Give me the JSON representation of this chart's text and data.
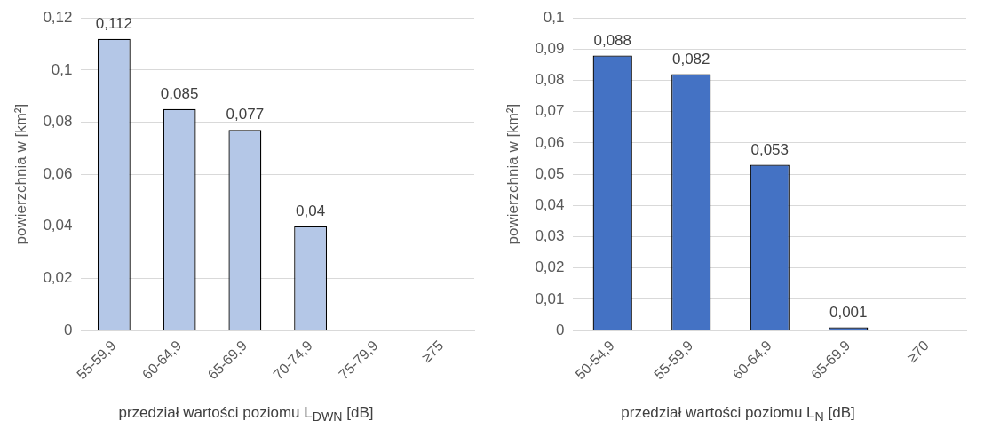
{
  "chart_data": [
    {
      "type": "bar",
      "xlabel": "przedział wartości poziomu L$_{DWN}$ [dB]",
      "ylabel": "powierzchnia w [km²]",
      "categories": [
        "55-59,9",
        "60-64,9",
        "65-69,9",
        "70-74,9",
        "75-79,9",
        "≥75"
      ],
      "series": [
        {
          "color": "#b4c7e7",
          "values": [
            0.112,
            0.085,
            0.077,
            0.04,
            null,
            null
          ]
        }
      ],
      "value_labels": [
        "0,112",
        "0,085",
        "0,077",
        "0,04",
        null,
        null
      ],
      "ylim": [
        0,
        0.12
      ],
      "yticks": [
        0,
        {
          "value": 0.02,
          "label": "0,02"
        },
        {
          "value": 0.04,
          "label": "0,04"
        },
        {
          "value": 0.06,
          "label": "0,06"
        },
        {
          "value": 0.08,
          "label": "0,08"
        },
        {
          "value": 0.1,
          "label": "0,1"
        },
        {
          "value": 0.12,
          "label": "0,12"
        }
      ],
      "grid": "y",
      "legend": false
    },
    {
      "type": "bar",
      "xlabel": "przedział wartości poziomu L$_{N}$ [dB]",
      "ylabel": "powierzchnia w [km²]",
      "categories": [
        "50-54,9",
        "55-59,9",
        "60-64,9",
        "65-69,9",
        "≥70"
      ],
      "series": [
        {
          "color": "#4472c4",
          "values": [
            0.088,
            0.082,
            0.053,
            0.001,
            null
          ]
        }
      ],
      "value_labels": [
        "0,088",
        "0,082",
        "0,053",
        "0,001",
        null
      ],
      "ylim": [
        0,
        0.1
      ],
      "yticks": [
        0,
        {
          "value": 0.01,
          "label": "0,01"
        },
        {
          "value": 0.02,
          "label": "0,02"
        },
        {
          "value": 0.03,
          "label": "0,03"
        },
        {
          "value": 0.04,
          "label": "0,04"
        },
        {
          "value": 0.05,
          "label": "0,05"
        },
        {
          "value": 0.06,
          "label": "0,06"
        },
        {
          "value": 0.07,
          "label": "0,07"
        },
        {
          "value": 0.08,
          "label": "0,08"
        },
        {
          "value": 0.09,
          "label": "0,09"
        },
        {
          "value": 0.1,
          "label": "0,1"
        }
      ],
      "grid": "y",
      "legend": false
    }
  ]
}
